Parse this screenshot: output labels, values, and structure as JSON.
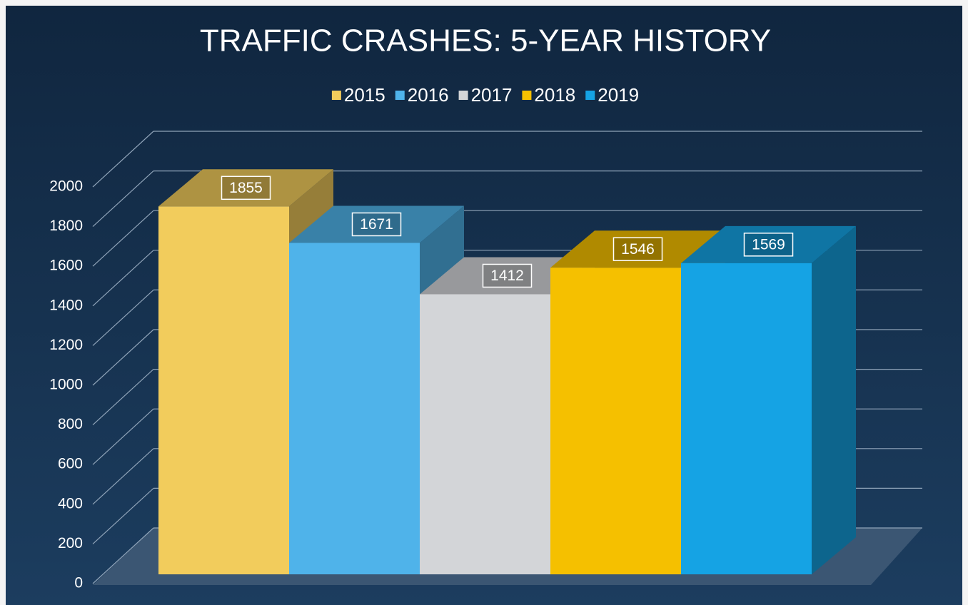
{
  "chart_data": {
    "type": "bar3d",
    "title": "TRAFFIC CRASHES: 5-YEAR HISTORY",
    "categories": [
      null
    ],
    "series": [
      {
        "name": "2015",
        "color": "#f2cc5c",
        "values": [
          1855
        ]
      },
      {
        "name": "2016",
        "color": "#4fb3ea",
        "values": [
          1671
        ]
      },
      {
        "name": "2017",
        "color": "#d3d5d8",
        "values": [
          1412
        ]
      },
      {
        "name": "2018",
        "color": "#f5c000",
        "values": [
          1546
        ]
      },
      {
        "name": "2019",
        "color": "#15a3e4",
        "values": [
          1569
        ]
      }
    ],
    "ylim": [
      0,
      2000
    ],
    "yticks": [
      0,
      200,
      400,
      600,
      800,
      1000,
      1200,
      1400,
      1600,
      1800,
      2000
    ],
    "grid": true,
    "legend": "top"
  }
}
